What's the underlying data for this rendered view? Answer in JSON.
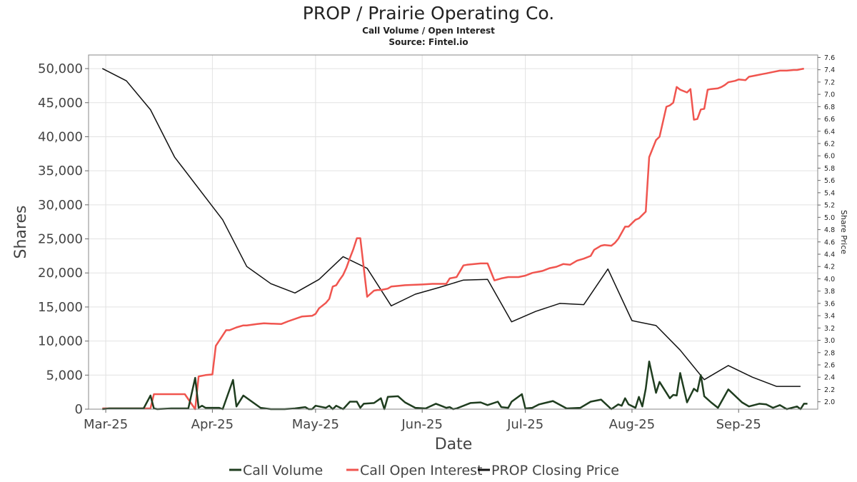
{
  "chart_data": {
    "type": "line",
    "title": "PROP / Prairie Operating Co.",
    "subtitle": "Call Volume / Open Interest",
    "source": "Source: Fintel.io",
    "xlabel": "Date",
    "ylabel": "Shares",
    "y2label": "Share Price",
    "xlim": [
      "2025-02-24",
      "2025-09-24"
    ],
    "ylim": [
      0,
      52000
    ],
    "y2lim": [
      1.88,
      7.64
    ],
    "y_ticks": [
      0,
      5000,
      10000,
      15000,
      20000,
      25000,
      30000,
      35000,
      40000,
      45000,
      50000
    ],
    "y_tick_labels": [
      "0",
      "5,000",
      "10,000",
      "15,000",
      "20,000",
      "25,000",
      "30,000",
      "35,000",
      "40,000",
      "45,000",
      "50,000"
    ],
    "y2_ticks": [
      2.0,
      2.2,
      2.4,
      2.6,
      2.8,
      3.0,
      3.2,
      3.4,
      3.6,
      3.8,
      4.0,
      4.2,
      4.4,
      4.6,
      4.8,
      5.0,
      5.2,
      5.4,
      5.6,
      5.8,
      6.0,
      6.2,
      6.4,
      6.6,
      6.8,
      7.0,
      7.2,
      7.4,
      7.6
    ],
    "y2_tick_labels": [
      "2.0",
      "2.2",
      "2.4",
      "2.6",
      "2.8",
      "3.0",
      "3.2",
      "3.4",
      "3.6",
      "3.8",
      "4.0",
      "4.2",
      "4.4",
      "4.6",
      "4.8",
      "5.0",
      "5.2",
      "5.4",
      "5.6",
      "5.8",
      "6.0",
      "6.2",
      "6.4",
      "6.6",
      "6.8",
      "7.0",
      "7.2",
      "7.4",
      "7.6"
    ],
    "x_ticks": [
      "2025-03-01",
      "2025-04-01",
      "2025-05-01",
      "2025-06-01",
      "2025-07-01",
      "2025-08-01",
      "2025-09-01"
    ],
    "x_tick_labels": [
      "Mar-25",
      "Apr-25",
      "May-25",
      "Jun-25",
      "Jul-25",
      "Aug-25",
      "Sep-25"
    ],
    "grid": true,
    "legend_position": "bottom",
    "series": [
      {
        "name": "Call Volume",
        "axis": "left",
        "color": "#1f3d1f",
        "x": [
          "2025-02-28",
          "2025-03-02",
          "2025-03-07",
          "2025-03-12",
          "2025-03-14",
          "2025-03-15",
          "2025-03-16",
          "2025-03-20",
          "2025-03-25",
          "2025-03-27",
          "2025-03-28",
          "2025-03-29",
          "2025-03-30",
          "2025-04-01",
          "2025-04-02",
          "2025-04-03",
          "2025-04-04",
          "2025-04-07",
          "2025-04-08",
          "2025-04-10",
          "2025-04-15",
          "2025-04-18",
          "2025-04-22",
          "2025-04-25",
          "2025-04-28",
          "2025-04-29",
          "2025-04-30",
          "2025-05-01",
          "2025-05-04",
          "2025-05-05",
          "2025-05-06",
          "2025-05-07",
          "2025-05-09",
          "2025-05-11",
          "2025-05-13",
          "2025-05-14",
          "2025-05-15",
          "2025-05-18",
          "2025-05-20",
          "2025-05-21",
          "2025-05-22",
          "2025-05-25",
          "2025-05-27",
          "2025-05-30",
          "2025-06-02",
          "2025-06-05",
          "2025-06-07",
          "2025-06-08",
          "2025-06-09",
          "2025-06-10",
          "2025-06-11",
          "2025-06-15",
          "2025-06-18",
          "2025-06-20",
          "2025-06-23",
          "2025-06-24",
          "2025-06-26",
          "2025-06-27",
          "2025-06-30",
          "2025-07-01",
          "2025-07-03",
          "2025-07-05",
          "2025-07-09",
          "2025-07-13",
          "2025-07-17",
          "2025-07-20",
          "2025-07-23",
          "2025-07-26",
          "2025-07-28",
          "2025-07-29",
          "2025-07-30",
          "2025-07-31",
          "2025-08-02",
          "2025-08-03",
          "2025-08-04",
          "2025-08-05",
          "2025-08-06",
          "2025-08-08",
          "2025-08-09",
          "2025-08-12",
          "2025-08-13",
          "2025-08-14",
          "2025-08-15",
          "2025-08-17",
          "2025-08-19",
          "2025-08-20",
          "2025-08-21",
          "2025-08-22",
          "2025-08-24",
          "2025-08-26",
          "2025-08-29",
          "2025-09-02",
          "2025-09-04",
          "2025-09-07",
          "2025-09-09",
          "2025-09-11",
          "2025-09-13",
          "2025-09-15",
          "2025-09-18",
          "2025-09-19",
          "2025-09-20",
          "2025-09-21"
        ],
        "values": [
          0,
          100,
          100,
          100,
          2000,
          100,
          0,
          100,
          100,
          4600,
          200,
          500,
          200,
          200,
          200,
          200,
          0,
          4300,
          400,
          2000,
          200,
          0,
          0,
          100,
          300,
          0,
          0,
          500,
          200,
          500,
          0,
          500,
          0,
          1100,
          1100,
          200,
          800,
          900,
          1600,
          0,
          1800,
          1900,
          1000,
          200,
          100,
          800,
          400,
          200,
          300,
          0,
          100,
          900,
          1000,
          600,
          1100,
          300,
          200,
          1100,
          2200,
          100,
          200,
          700,
          1200,
          100,
          200,
          1100,
          1400,
          0,
          700,
          500,
          1600,
          700,
          200,
          1800,
          400,
          3000,
          7000,
          2400,
          4000,
          1600,
          2100,
          2000,
          5300,
          1000,
          3000,
          2600,
          5000,
          1900,
          1000,
          200,
          2900,
          1000,
          400,
          800,
          700,
          200,
          600,
          0,
          400,
          0,
          800,
          800
        ]
      },
      {
        "name": "Call Open Interest",
        "axis": "left",
        "color": "#f0554f",
        "x": [
          "2025-02-28",
          "2025-03-05",
          "2025-03-10",
          "2025-03-14",
          "2025-03-15",
          "2025-03-20",
          "2025-03-24",
          "2025-03-27",
          "2025-03-28",
          "2025-03-30",
          "2025-04-01",
          "2025-04-02",
          "2025-04-05",
          "2025-04-06",
          "2025-04-08",
          "2025-04-10",
          "2025-04-11",
          "2025-04-14",
          "2025-04-16",
          "2025-04-21",
          "2025-04-23",
          "2025-04-27",
          "2025-04-30",
          "2025-05-01",
          "2025-05-02",
          "2025-05-04",
          "2025-05-05",
          "2025-05-06",
          "2025-05-07",
          "2025-05-08",
          "2025-05-09",
          "2025-05-10",
          "2025-05-11",
          "2025-05-12",
          "2025-05-13",
          "2025-05-14",
          "2025-05-16",
          "2025-05-18",
          "2025-05-19",
          "2025-05-20",
          "2025-05-22",
          "2025-05-23",
          "2025-05-25",
          "2025-05-27",
          "2025-06-01",
          "2025-06-04",
          "2025-06-08",
          "2025-06-09",
          "2025-06-11",
          "2025-06-13",
          "2025-06-14",
          "2025-06-18",
          "2025-06-20",
          "2025-06-22",
          "2025-06-24",
          "2025-06-26",
          "2025-06-29",
          "2025-07-01",
          "2025-07-03",
          "2025-07-06",
          "2025-07-08",
          "2025-07-10",
          "2025-07-12",
          "2025-07-14",
          "2025-07-16",
          "2025-07-18",
          "2025-07-20",
          "2025-07-21",
          "2025-07-23",
          "2025-07-24",
          "2025-07-26",
          "2025-07-27",
          "2025-07-28",
          "2025-07-30",
          "2025-07-31",
          "2025-08-02",
          "2025-08-03",
          "2025-08-05",
          "2025-08-06",
          "2025-08-08",
          "2025-08-09",
          "2025-08-11",
          "2025-08-12",
          "2025-08-13",
          "2025-08-14",
          "2025-08-15",
          "2025-08-17",
          "2025-08-18",
          "2025-08-19",
          "2025-08-20",
          "2025-08-21",
          "2025-08-22",
          "2025-08-23",
          "2025-08-24",
          "2025-08-26",
          "2025-08-27",
          "2025-08-28",
          "2025-08-29",
          "2025-08-30",
          "2025-08-31",
          "2025-09-01",
          "2025-09-03",
          "2025-09-04",
          "2025-09-06",
          "2025-09-08",
          "2025-09-09",
          "2025-09-11",
          "2025-09-13",
          "2025-09-15",
          "2025-09-17",
          "2025-09-18",
          "2025-09-19",
          "2025-09-20"
        ],
        "values": [
          100,
          100,
          100,
          100,
          2200,
          2200,
          2200,
          0,
          4800,
          5000,
          5100,
          9300,
          11600,
          11600,
          12000,
          12300,
          12300,
          12500,
          12600,
          12500,
          12900,
          13600,
          13700,
          14000,
          14800,
          15600,
          16200,
          18000,
          18200,
          19000,
          19700,
          20800,
          22200,
          23500,
          25100,
          25100,
          16500,
          17400,
          17500,
          17500,
          17700,
          18000,
          18100,
          18200,
          18300,
          18400,
          18400,
          19200,
          19400,
          21100,
          21200,
          21400,
          21400,
          18900,
          19200,
          19400,
          19400,
          19600,
          20000,
          20300,
          20700,
          20900,
          21300,
          21200,
          21800,
          22100,
          22500,
          23400,
          24000,
          24100,
          24000,
          24400,
          25000,
          26800,
          26800,
          27800,
          28000,
          29000,
          37000,
          39500,
          40000,
          44400,
          44600,
          45000,
          47300,
          46900,
          46500,
          47000,
          42500,
          42600,
          44000,
          44100,
          46900,
          47000,
          47100,
          47300,
          47600,
          48000,
          48100,
          48200,
          48400,
          48300,
          48800,
          49000,
          49200,
          49300,
          49500,
          49700,
          49700,
          49800,
          49800,
          49900,
          50000
        ]
      },
      {
        "name": "PROP Closing Price",
        "axis": "right",
        "color": "#111111",
        "x": [
          "2025-02-28",
          "2025-03-07",
          "2025-03-14",
          "2025-03-21",
          "2025-04-04",
          "2025-04-11",
          "2025-04-18",
          "2025-04-25",
          "2025-05-02",
          "2025-05-09",
          "2025-05-16",
          "2025-05-23",
          "2025-05-30",
          "2025-06-06",
          "2025-06-13",
          "2025-06-20",
          "2025-06-27",
          "2025-07-04",
          "2025-07-11",
          "2025-07-18",
          "2025-07-25",
          "2025-08-01",
          "2025-08-08",
          "2025-08-15",
          "2025-08-22",
          "2025-08-29",
          "2025-09-05",
          "2025-09-12",
          "2025-09-19"
        ],
        "values": [
          7.42,
          7.22,
          6.75,
          5.98,
          4.96,
          4.2,
          3.92,
          3.77,
          3.99,
          4.36,
          4.17,
          3.56,
          3.75,
          3.86,
          3.98,
          3.99,
          3.3,
          3.47,
          3.6,
          3.58,
          4.16,
          3.32,
          3.24,
          2.84,
          2.36,
          2.59,
          2.4,
          2.25,
          2.25
        ]
      }
    ]
  }
}
